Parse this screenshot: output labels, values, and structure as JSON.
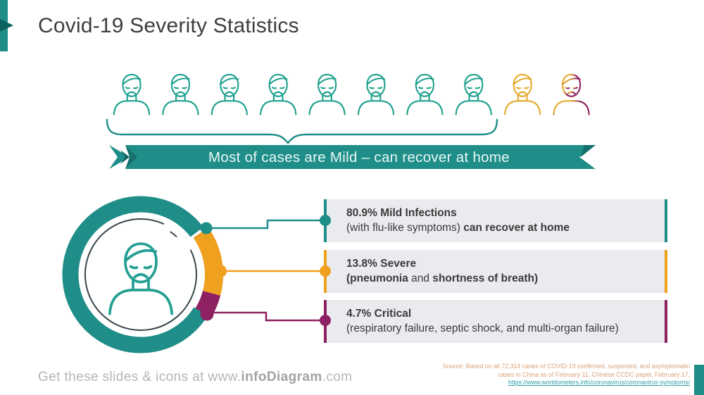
{
  "palette": {
    "teal": "#1f8e89",
    "teal_dark": "#0d615e",
    "icon_teal": "#1da08f",
    "yellow": "#e3ab2c",
    "orange": "#efa01f",
    "magenta": "#8e2161",
    "box_bg": "#e9ebee",
    "text_dark": "#3a3a3a",
    "footer_gray": "#b5b5b5",
    "source_tan": "#dba37a",
    "link_teal": "#2f9faa"
  },
  "title": "Covid-19 Severity Statistics",
  "banner": "Most of cases are Mild – can recover at home",
  "people_row": [
    "mild",
    "mild",
    "mild",
    "mild",
    "mild",
    "mild",
    "mild",
    "mild",
    "severe",
    "critical"
  ],
  "stats": [
    {
      "headline": "80.9% Mild Infections",
      "detail_parts": [
        {
          "text": "(with flu-like symptoms) ",
          "bold": false
        },
        {
          "text": "can recover at home",
          "bold": true
        }
      ],
      "color": "#1f8e89"
    },
    {
      "headline": "13.8% Severe",
      "detail_parts": [
        {
          "text": "(pneumonia",
          "bold": true
        },
        {
          "text": " and ",
          "bold": false
        },
        {
          "text": "shortness of breath)",
          "bold": true
        }
      ],
      "color": "#efa01f"
    },
    {
      "headline": "4.7% Critical",
      "detail_parts": [
        {
          "text": "(respiratory failure, septic shock, and multi-organ failure)",
          "bold": false
        }
      ],
      "color": "#8e2161"
    }
  ],
  "chart_data": {
    "type": "pie",
    "title": "Covid-19 case severity breakdown (donut)",
    "categories": [
      "Mild",
      "Severe",
      "Critical"
    ],
    "values": [
      80.9,
      13.8,
      4.7
    ],
    "colors": [
      "#1f8e89",
      "#efa01f",
      "#8e2161"
    ],
    "legend_position": "right"
  },
  "footer": {
    "text_prefix": "Get these slides & icons at www.",
    "brand": "infoDiagram",
    "text_suffix": ".com"
  },
  "source": {
    "line1": "Source: Based on all 72,314 cases of COVID-19 confirmed, suspected, and asymptomatic",
    "line2": "cases in China as of February 11, Chinese CCDC paper, February 17,",
    "link": "https://www.worldometers.info/coronavirus/coronavirus-symptoms/"
  }
}
